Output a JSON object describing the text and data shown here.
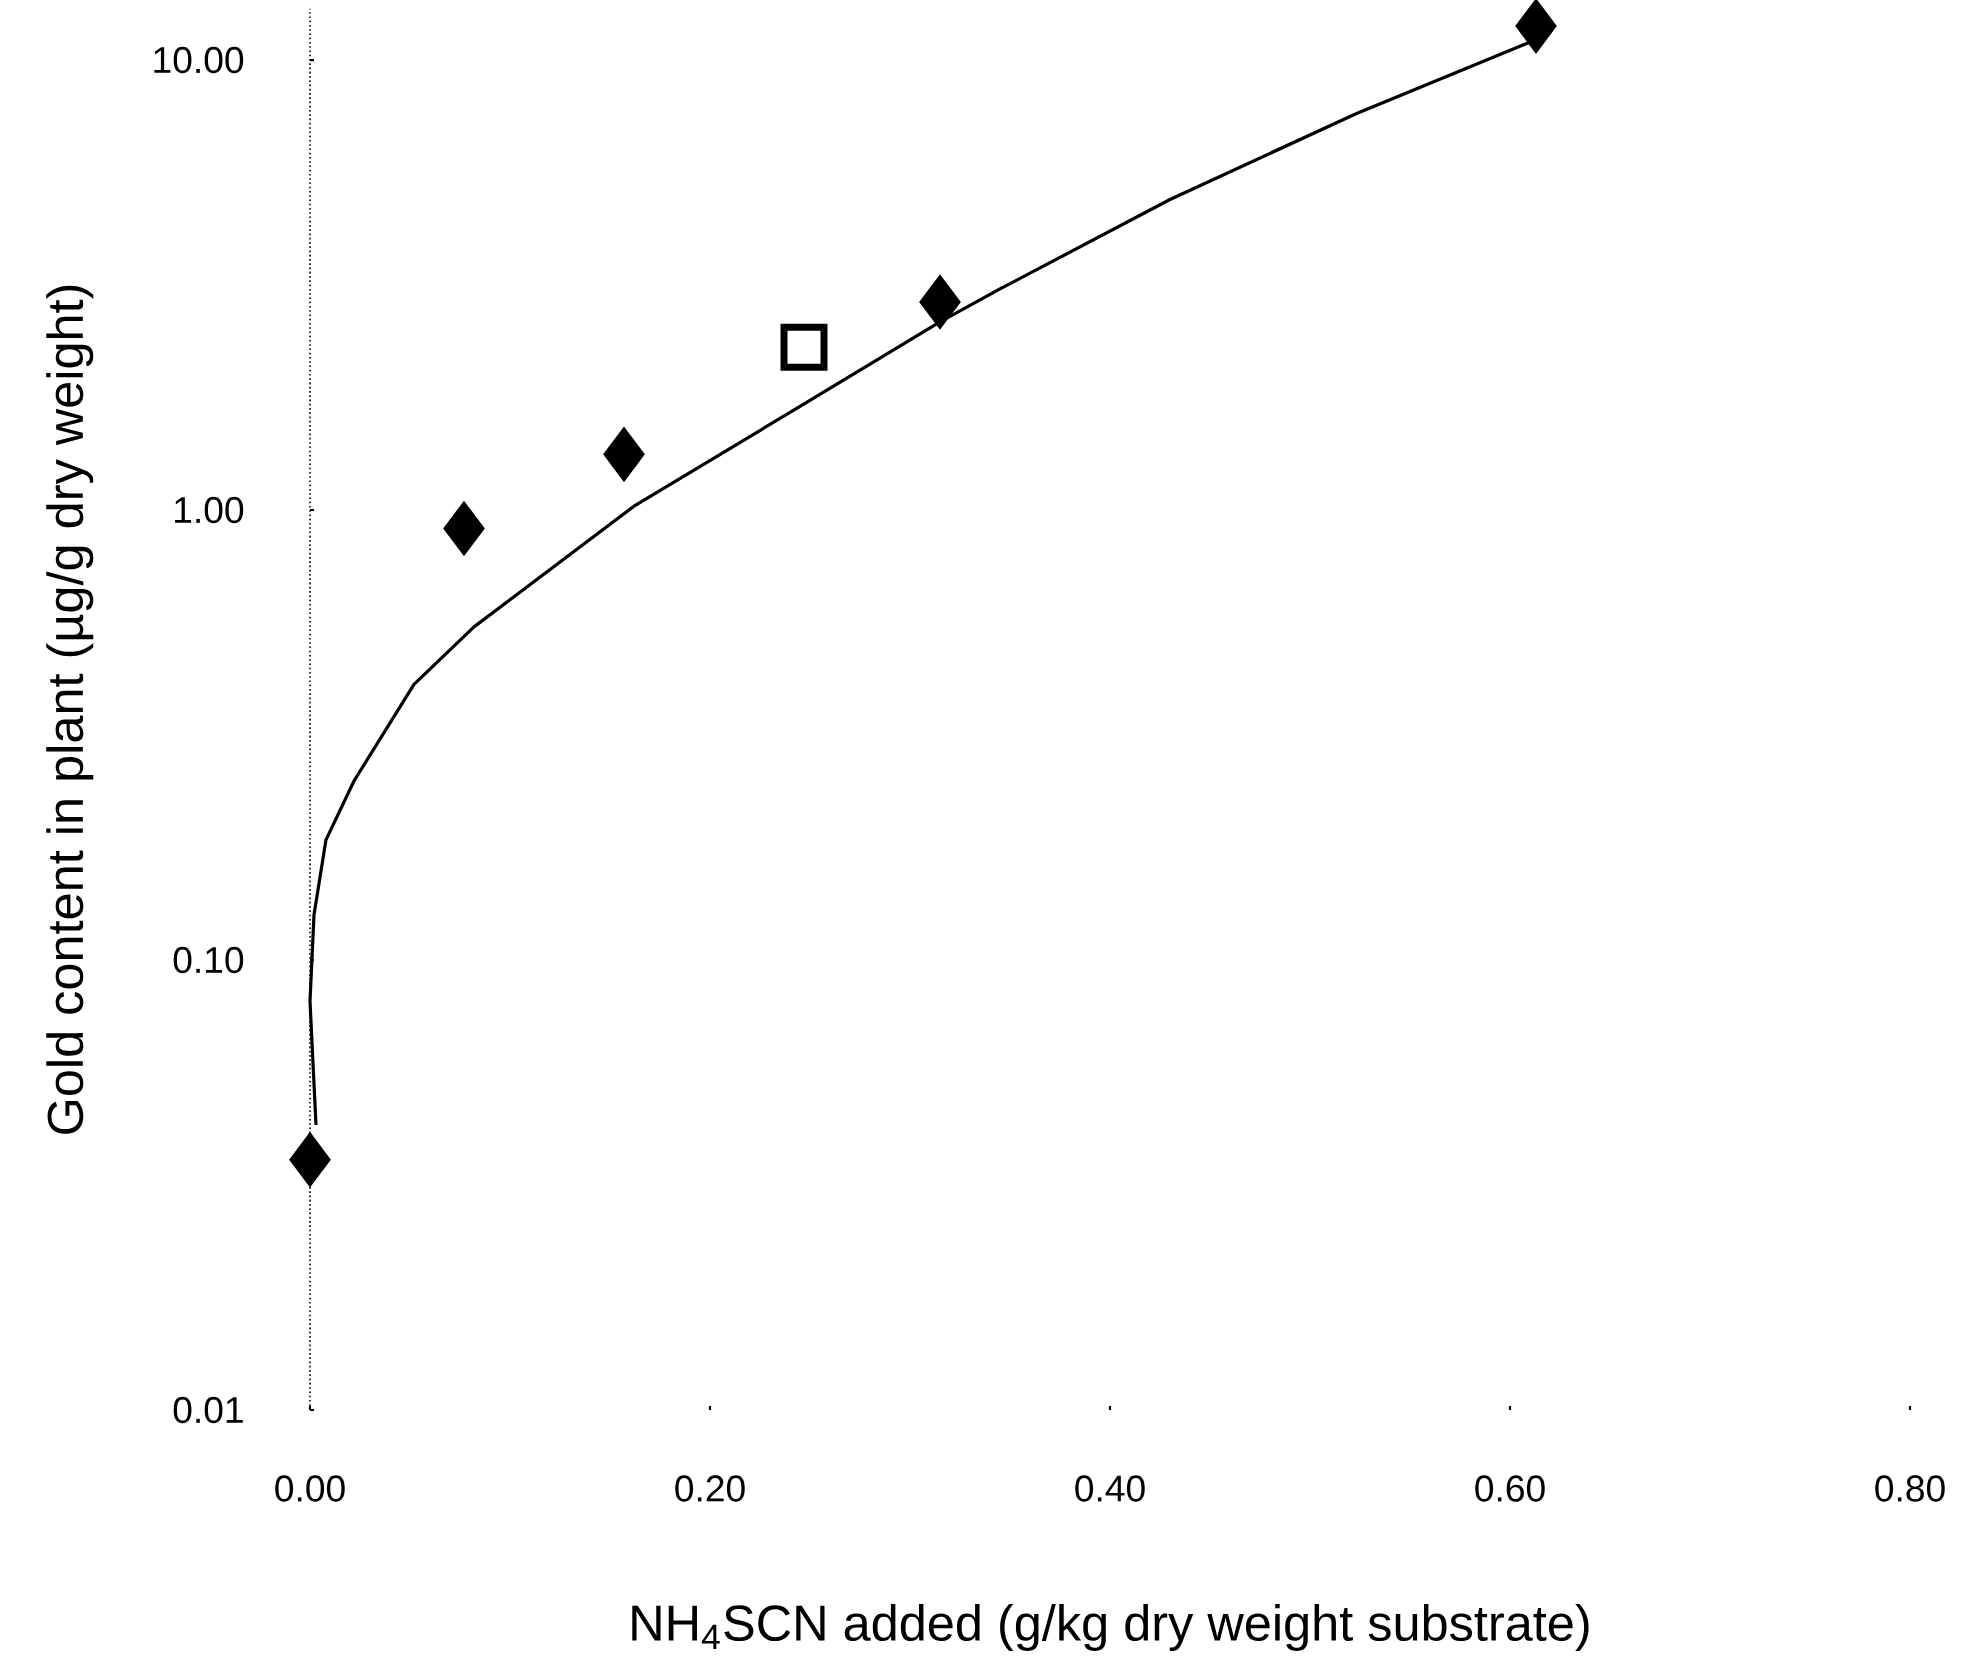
{
  "chart_data": {
    "type": "scatter",
    "xlabel": "NH$_{4}$SCN added (g/kg dry weight substrate)",
    "ylabel": "Gold content in plant (µg/g dry weight)",
    "log": "y",
    "xlim": [
      0,
      0.8
    ],
    "ylim": [
      0.01,
      13
    ],
    "xticks": [
      {
        "value": 0,
        "label": "0.00"
      },
      {
        "value": 0.2,
        "label": "0.20"
      },
      {
        "value": 0.4,
        "label": "0.40"
      },
      {
        "value": 0.6,
        "label": "0.60"
      },
      {
        "value": 0.8,
        "label": "0.80"
      }
    ],
    "yticks": [
      {
        "value": 0.01,
        "label": "0.01"
      },
      {
        "value": 0.1,
        "label": "0.10"
      },
      {
        "value": 1,
        "label": "1.00"
      },
      {
        "value": 10,
        "label": "10.00"
      }
    ],
    "series": [
      {
        "marker": "diamond",
        "color": "#000000",
        "x": [
          0.0,
          0.077,
          0.157,
          0.315,
          0.613
        ],
        "values": [
          0.036,
          0.91,
          1.33,
          2.9,
          11.9
        ]
      },
      {
        "marker": "square",
        "color": "#000000",
        "x": [
          0.247
        ],
        "values": [
          2.3
        ]
      },
      {
        "type": "line",
        "marker": "none",
        "color": "#000000",
        "x": [
          0.003,
          0.0,
          0.002,
          0.008,
          0.022,
          0.052,
          0.082,
          0.162,
          0.245,
          0.315,
          0.345,
          0.43,
          0.523,
          0.613
        ],
        "values": [
          0.043,
          0.081,
          0.126,
          0.185,
          0.25,
          0.41,
          0.55,
          1.02,
          1.7,
          2.62,
          3.1,
          4.9,
          7.6,
          11.1
        ]
      }
    ]
  }
}
